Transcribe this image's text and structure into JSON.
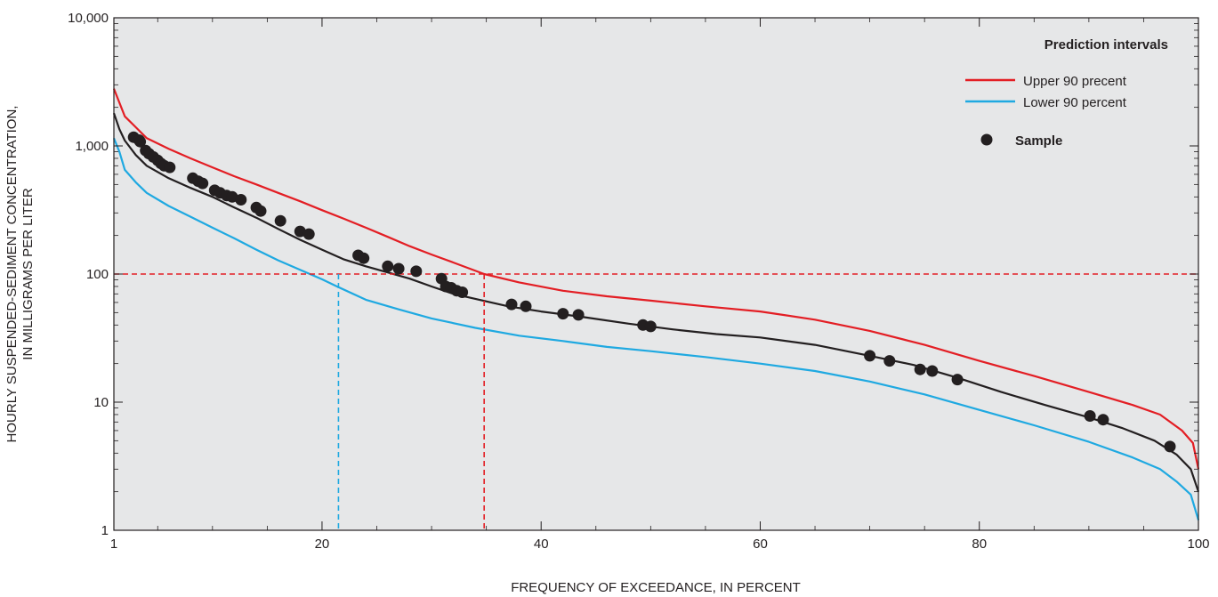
{
  "chart_data": {
    "type": "line",
    "xlabel": "FREQUENCY OF EXCEEDANCE, IN PERCENT",
    "ylabel_line1": "HOURLY SUSPENDED-SEDIMENT CONCENTRATION,",
    "ylabel_line2": "IN MILLIGRAMS PER LITER",
    "xlim": [
      1,
      100
    ],
    "ylim": [
      1,
      10000
    ],
    "y_scale": "log",
    "x_ticks": [
      1,
      20,
      40,
      60,
      80,
      100
    ],
    "x_tick_labels": [
      "1",
      "20",
      "40",
      "60",
      "80",
      "100"
    ],
    "y_ticks": [
      1,
      10,
      100,
      1000,
      10000
    ],
    "y_tick_labels": [
      "1",
      "10",
      "100",
      "1,000",
      "10,000"
    ],
    "grid": false,
    "legend": {
      "title": "Prediction intervals",
      "placement": "top-right",
      "upper_label": "Upper 90 precent",
      "lower_label": "Lower 90 percent",
      "sample_label": "Sample"
    },
    "colors": {
      "plot_background": "#e6e7e8",
      "upper": "#e31e24",
      "lower": "#1fa9e1",
      "regression": "#231f20",
      "sample": "#231f20"
    },
    "reference_lines": {
      "horizontal_y": 100,
      "upper_crossing_x": 34.8,
      "lower_crossing_x": 21.5
    },
    "series": [
      {
        "name": "Upper 90 precent",
        "x": [
          1,
          2,
          3,
          4,
          6,
          8,
          10,
          12,
          14,
          16,
          18,
          20,
          22,
          24,
          26,
          28,
          30,
          32,
          34.8,
          38,
          42,
          46,
          50,
          55,
          60,
          65,
          70,
          75,
          80,
          85,
          90,
          94,
          96.5,
          98.5,
          99.5,
          100
        ],
        "y": [
          2800,
          1700,
          1400,
          1150,
          950,
          800,
          680,
          580,
          500,
          430,
          370,
          315,
          270,
          230,
          195,
          165,
          142,
          123,
          100,
          86,
          74,
          67,
          62,
          56,
          51,
          44,
          36,
          28,
          21,
          16,
          12,
          9.5,
          8,
          6,
          4.8,
          3
        ]
      },
      {
        "name": "Lower 90 percent",
        "x": [
          1,
          1.5,
          2,
          3,
          4,
          6,
          8,
          10,
          12,
          14,
          16,
          18,
          20,
          21.5,
          24,
          27,
          30,
          34,
          38,
          42,
          46,
          50,
          55,
          60,
          65,
          70,
          75,
          80,
          85,
          90,
          94,
          96.5,
          98,
          99.3,
          100
        ],
        "y": [
          1150,
          900,
          650,
          520,
          430,
          340,
          280,
          230,
          190,
          155,
          128,
          108,
          91,
          79,
          63,
          53,
          45,
          38,
          33,
          30,
          27,
          25,
          22.5,
          20,
          17.5,
          14.5,
          11.5,
          8.7,
          6.6,
          4.9,
          3.7,
          3.0,
          2.4,
          1.9,
          1.2
        ]
      },
      {
        "x": [
          1,
          1.5,
          2,
          3,
          4,
          6,
          8,
          10,
          12,
          14,
          16,
          18,
          20,
          22,
          24,
          26,
          28,
          30,
          32,
          34,
          37,
          40,
          44,
          48,
          52,
          56,
          60,
          65,
          70,
          74,
          78,
          82,
          86,
          90,
          93,
          96,
          98,
          99.3,
          100
        ],
        "y": [
          1800,
          1350,
          1100,
          850,
          700,
          560,
          470,
          400,
          330,
          275,
          225,
          185,
          155,
          130,
          115,
          103,
          92,
          80,
          70,
          64,
          56,
          51,
          46,
          41,
          37,
          34,
          32,
          28,
          23,
          19.5,
          15.5,
          12,
          9.5,
          7.6,
          6.3,
          5.0,
          3.9,
          3.0,
          2.0
        ]
      }
    ],
    "samples": {
      "name": "Sample",
      "x": [
        2.8,
        3.3,
        3.4,
        3.9,
        4.2,
        4.6,
        5.0,
        5.3,
        5.6,
        6.1,
        8.2,
        8.7,
        9.1,
        10.2,
        10.7,
        11.3,
        11.8,
        12.6,
        14.0,
        14.4,
        16.2,
        18.0,
        18.8,
        23.3,
        23.8,
        26.0,
        27.0,
        28.6,
        30.9,
        31.3,
        31.8,
        32.3,
        32.8,
        37.3,
        38.6,
        42.0,
        43.4,
        49.3,
        50.0,
        70.0,
        71.8,
        74.6,
        75.7,
        78.0,
        90.1,
        91.3,
        97.4
      ],
      "y": [
        1170,
        1110,
        1080,
        920,
        870,
        820,
        770,
        730,
        700,
        680,
        560,
        530,
        510,
        450,
        430,
        410,
        400,
        380,
        330,
        310,
        260,
        215,
        205,
        140,
        133,
        115,
        110,
        105,
        92,
        80,
        78,
        74,
        72,
        58,
        56,
        49,
        48,
        40,
        39,
        23,
        21,
        18,
        17.5,
        15,
        7.8,
        7.3,
        4.5
      ]
    }
  }
}
